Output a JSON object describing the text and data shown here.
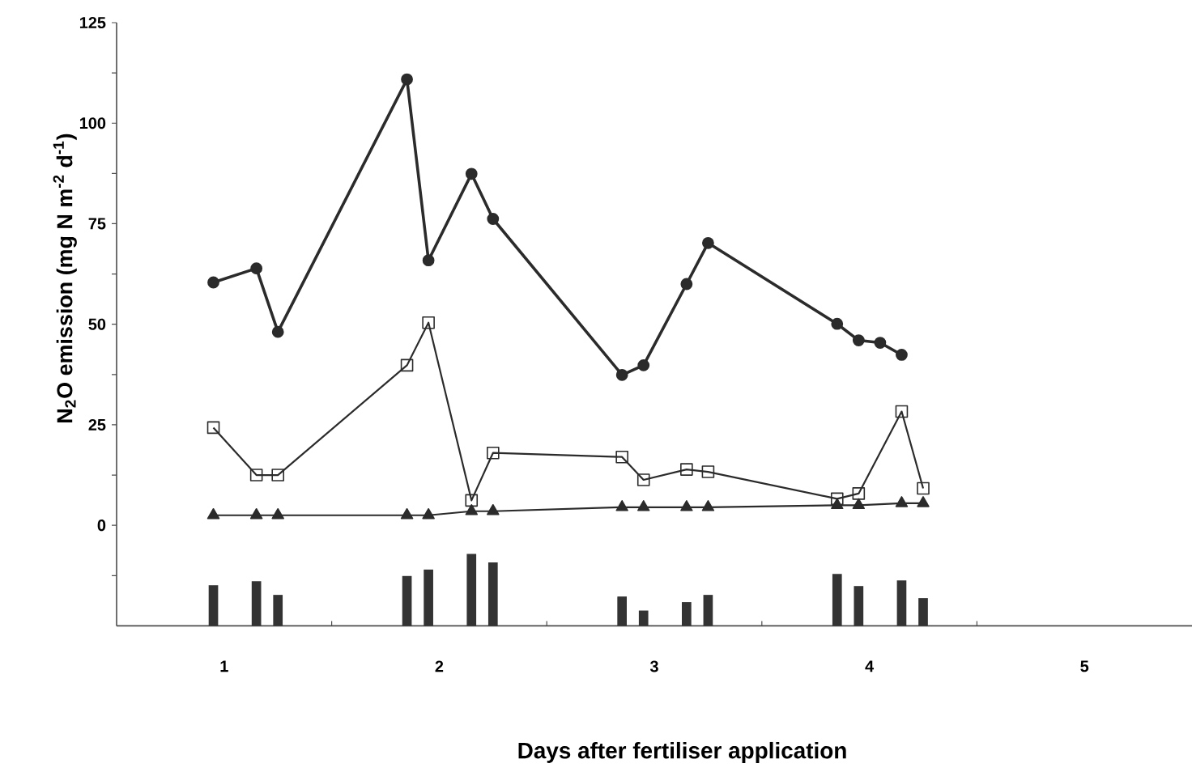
{
  "chart_data": {
    "type": "line",
    "xlabel": "Days after fertiliser application",
    "ylabel": "N$_{2}$O emission (mg N m$^{-2}$ d$^{-1}$)",
    "xlim": [
      0.5,
      5.5
    ],
    "xticks": [
      1,
      2,
      3,
      4,
      5,
      {
        "value": 1.5,
        "label": null
      },
      {
        "value": 2.5,
        "label": null
      },
      {
        "value": 3.5,
        "label": null
      },
      {
        "value": 4.5,
        "label": null
      }
    ],
    "ylim": [
      -25,
      125
    ],
    "yticks": [
      0,
      25,
      50,
      75,
      100,
      125,
      {
        "value": -12.5,
        "label": null
      },
      {
        "value": 12.5,
        "label": null
      },
      {
        "value": 37.5,
        "label": null
      },
      {
        "value": 62.5,
        "label": null
      },
      {
        "value": 87.5,
        "label": null
      },
      {
        "value": 112.5,
        "label": null
      }
    ],
    "grid": false,
    "series": [
      {
        "marker": "circle",
        "color": "#2b2b2b",
        "x": [
          0.95,
          1.15,
          1.25,
          1.85,
          1.95,
          2.15,
          2.25,
          2.85,
          2.95,
          3.15,
          3.25,
          3.85,
          3.95,
          4.05,
          4.15
        ],
        "values": [
          60.4,
          63.9,
          48.1,
          110.9,
          65.9,
          87.4,
          76.2,
          37.4,
          39.8,
          60.0,
          70.2,
          50.1,
          46.0,
          45.4,
          42.4
        ]
      },
      {
        "marker": "square",
        "color": "#2b2b2b",
        "x": [
          0.95,
          1.15,
          1.25,
          1.85,
          1.95,
          2.15,
          2.25,
          2.85,
          2.95,
          3.15,
          3.25,
          3.85,
          3.95,
          4.15,
          4.25
        ],
        "values": [
          24.3,
          12.5,
          12.5,
          39.8,
          50.4,
          6.2,
          18.0,
          17.0,
          11.3,
          13.9,
          13.3,
          6.6,
          7.9,
          28.3,
          9.2
        ]
      },
      {
        "marker": "triangle",
        "color": "#2b2b2b",
        "x": [
          0.95,
          1.15,
          1.25,
          1.85,
          1.95,
          2.15,
          2.25,
          2.85,
          2.95,
          3.15,
          3.25,
          3.85,
          3.95,
          4.15,
          4.25
        ],
        "values": [
          2.5,
          2.5,
          2.5,
          2.5,
          2.5,
          3.5,
          3.5,
          4.5,
          4.5,
          4.5,
          4.5,
          5.0,
          5.0,
          5.5,
          5.5
        ]
      },
      {
        "type": "bar",
        "color": "#333333",
        "x": [
          0.95,
          1.15,
          1.25,
          1.85,
          1.95,
          2.15,
          2.25,
          2.85,
          2.95,
          3.15,
          3.25,
          3.85,
          3.95,
          4.15,
          4.25
        ],
        "base": [
          -25,
          -25,
          -25,
          -25,
          -25,
          -25,
          -25,
          -25,
          -25,
          -25,
          -25,
          -25,
          -25,
          -25,
          -25
        ],
        "values": [
          10.1,
          11.1,
          7.7,
          12.4,
          14.0,
          17.9,
          15.8,
          7.3,
          3.8,
          5.9,
          7.7,
          12.9,
          9.9,
          11.3,
          6.9
        ]
      }
    ]
  }
}
